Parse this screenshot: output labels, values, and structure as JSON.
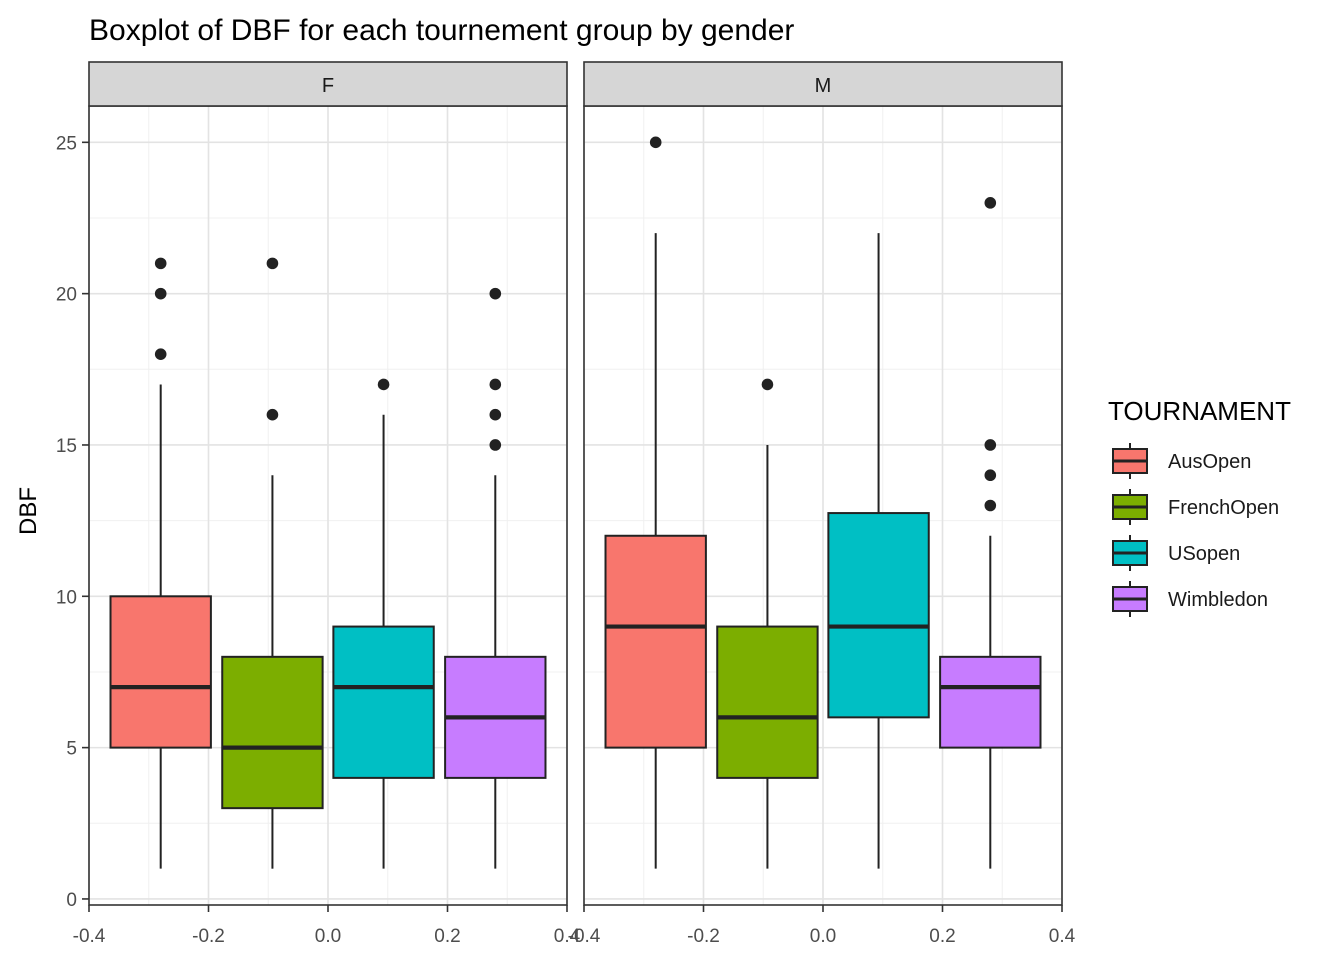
{
  "chart_data": {
    "type": "boxplot",
    "title": "Boxplot of DBF for each tournement group by gender",
    "ylabel": "DBF",
    "xlabel": "",
    "ylim": [
      -0.2,
      26.2
    ],
    "yticks": [
      0,
      5,
      10,
      15,
      20,
      25
    ],
    "xlim": [
      -0.4,
      0.4
    ],
    "xticks": [
      -0.4,
      -0.2,
      0.0,
      0.2,
      0.4
    ],
    "xtick_labels": [
      "-0.4",
      "-0.2",
      "0.0",
      "0.2",
      "0.4"
    ],
    "grid": true,
    "legend": {
      "title": "TOURNAMENT",
      "position": "right",
      "entries": [
        {
          "name": "AusOpen",
          "color": "#F8766D"
        },
        {
          "name": "FrenchOpen",
          "color": "#7CAE00"
        },
        {
          "name": "USopen",
          "color": "#00BFC4"
        },
        {
          "name": "Wimbledon",
          "color": "#C77CFF"
        }
      ]
    },
    "panels": [
      {
        "label": "F",
        "boxes": [
          {
            "group": "AusOpen",
            "x": -0.28,
            "whisker_low": 1,
            "q1": 5,
            "median": 7,
            "q3": 10,
            "whisker_high": 17,
            "outliers": [
              18,
              20,
              21
            ]
          },
          {
            "group": "FrenchOpen",
            "x": -0.093,
            "whisker_low": 1,
            "q1": 3,
            "median": 5,
            "q3": 8,
            "whisker_high": 14,
            "outliers": [
              16,
              21
            ]
          },
          {
            "group": "USopen",
            "x": 0.093,
            "whisker_low": 1,
            "q1": 4,
            "median": 7,
            "q3": 9,
            "whisker_high": 16,
            "outliers": [
              17
            ]
          },
          {
            "group": "Wimbledon",
            "x": 0.28,
            "whisker_low": 1,
            "q1": 4,
            "median": 6,
            "q3": 8,
            "whisker_high": 14,
            "outliers": [
              15,
              16,
              17,
              20
            ]
          }
        ]
      },
      {
        "label": "M",
        "boxes": [
          {
            "group": "AusOpen",
            "x": -0.28,
            "whisker_low": 1,
            "q1": 5,
            "median": 9,
            "q3": 12,
            "whisker_high": 22,
            "outliers": [
              25
            ]
          },
          {
            "group": "FrenchOpen",
            "x": -0.093,
            "whisker_low": 1,
            "q1": 4,
            "median": 6,
            "q3": 9,
            "whisker_high": 15,
            "outliers": [
              17
            ]
          },
          {
            "group": "USopen",
            "x": 0.093,
            "whisker_low": 1,
            "q1": 6,
            "median": 9,
            "q3": 12.75,
            "whisker_high": 22,
            "outliers": []
          },
          {
            "group": "Wimbledon",
            "x": 0.28,
            "whisker_low": 1,
            "q1": 5,
            "median": 7,
            "q3": 8,
            "whisker_high": 12,
            "outliers": [
              13,
              14,
              15,
              23
            ]
          }
        ]
      }
    ]
  }
}
